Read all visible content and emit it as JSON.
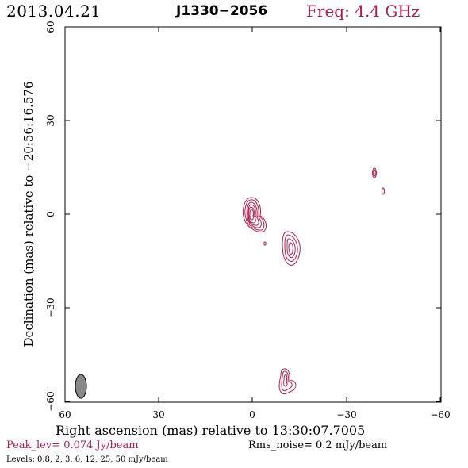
{
  "header": {
    "date": "2013.04.21",
    "source": "J1330−2056",
    "frequency": "Freq: 4.4 GHz"
  },
  "axes": {
    "x_label": "Right ascension (mas) relative to 13:30:07.7005",
    "y_label": "Declination (mas) relative to −20:56:16.576",
    "x_ticks": [
      "60",
      "30",
      "0",
      "−30",
      "−60"
    ],
    "y_ticks": [
      "60",
      "30",
      "0",
      "−30",
      "−60"
    ]
  },
  "footer": {
    "peak": "Peak_lev=  0.074 Jy/beam",
    "rms": "Rms_noise=  0.2 mJy/beam",
    "levels": "Levels: 0.8,   2,   3,   6,  12,  25,  50 mJy/beam"
  },
  "colors": {
    "contour": "#b01e4c",
    "beam": "#888888",
    "frame": "#000000"
  }
}
